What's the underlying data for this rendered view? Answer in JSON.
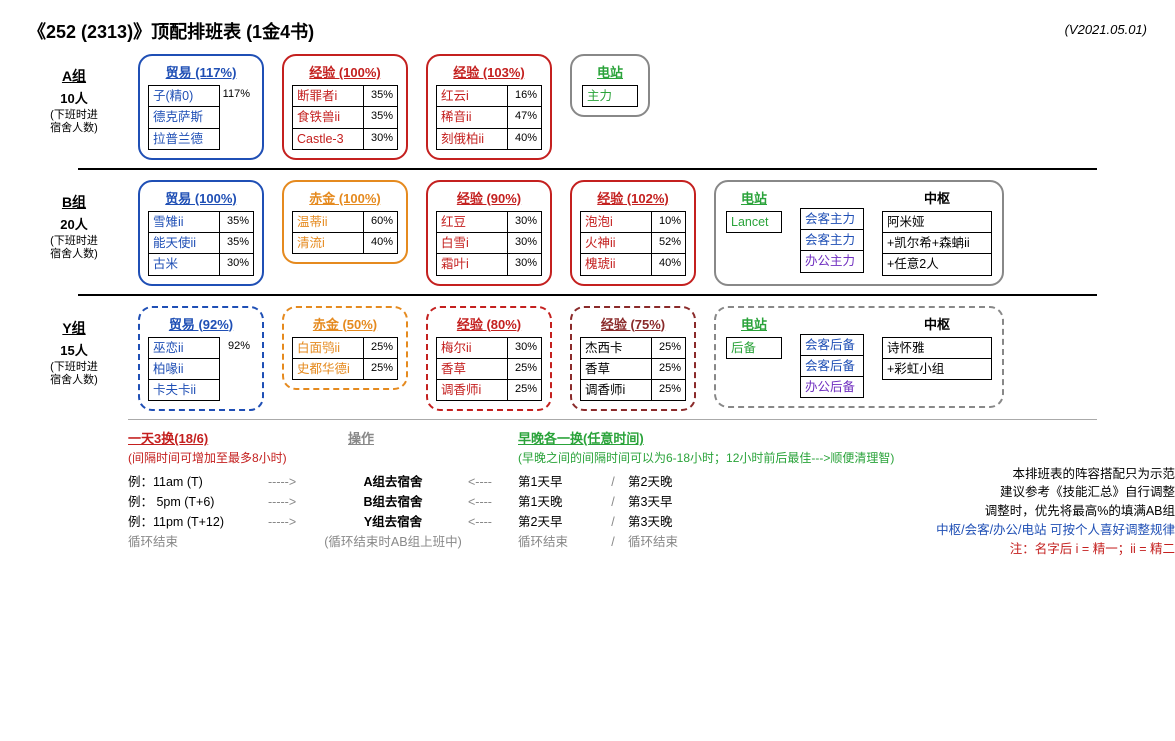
{
  "title": "《252 (2313)》顶配排班表 (1金4书)",
  "version": "(V2021.05.01)",
  "colors": {
    "blue": "#1f4fb5",
    "orange": "#e58a1f",
    "red": "#c4201f",
    "darkred": "#8a2a2a",
    "green": "#2aa33a",
    "gray": "#888888",
    "purple": "#7030c0"
  },
  "groups": [
    {
      "name": "A组",
      "count": "10人",
      "sub": "(下班时进\n宿舍人数)",
      "dashed": false,
      "cards": [
        {
          "kind": "blue",
          "title": "贸易 (117%)",
          "rows": [
            [
              "子(精0)",
              "117%"
            ],
            [
              "德克萨斯",
              ""
            ],
            [
              "拉普兰德",
              ""
            ]
          ],
          "pctSpan": true
        },
        {
          "kind": "red",
          "title": "经验 (100%)",
          "rows": [
            [
              "断罪者i",
              "35%"
            ],
            [
              "食铁兽ii",
              "35%"
            ],
            [
              "Castle-3",
              "30%"
            ]
          ]
        },
        {
          "kind": "red",
          "title": "经验 (103%)",
          "rows": [
            [
              "红云i",
              "16%"
            ],
            [
              "稀音ii",
              "47%"
            ],
            [
              "刻俄柏ii",
              "40%"
            ]
          ]
        },
        {
          "kind": "combo-small",
          "left": {
            "title": "电站",
            "titleColor": "green",
            "rows": [
              [
                "主力",
                ""
              ]
            ],
            "nameColor": "green"
          }
        }
      ]
    },
    {
      "name": "B组",
      "count": "20人",
      "sub": "(下班时进\n宿舍人数)",
      "dashed": false,
      "cards": [
        {
          "kind": "blue",
          "title": "贸易 (100%)",
          "rows": [
            [
              "雪雉ii",
              "35%"
            ],
            [
              "能天使ii",
              "35%"
            ],
            [
              "古米",
              "30%"
            ]
          ]
        },
        {
          "kind": "orange",
          "title": "赤金 (100%)",
          "rows": [
            [
              "温蒂ii",
              "60%"
            ],
            [
              "清流i",
              "40%"
            ]
          ]
        },
        {
          "kind": "red",
          "title": "经验 (90%)",
          "rows": [
            [
              "红豆",
              "30%"
            ],
            [
              "白雪i",
              "30%"
            ],
            [
              "霜叶i",
              "30%"
            ]
          ]
        },
        {
          "kind": "red",
          "title": "经验 (102%)",
          "rows": [
            [
              "泡泡i",
              "10%"
            ],
            [
              "火神ii",
              "52%"
            ],
            [
              "槐琥ii",
              "40%"
            ]
          ]
        },
        {
          "kind": "combo",
          "left": {
            "title": "电站",
            "titleColor": "green",
            "rows": [
              [
                "Lancet",
                ""
              ]
            ],
            "nameColor": "green"
          },
          "mid": {
            "rows": [
              [
                "会客主力",
                ""
              ],
              [
                "会客主力",
                ""
              ],
              [
                "办公主力",
                ""
              ]
            ],
            "colors": [
              "#1f4fb5",
              "#1f4fb5",
              "#7030c0"
            ]
          },
          "right": {
            "title": "中枢",
            "rows": [
              [
                "阿米娅",
                ""
              ],
              [
                "+凯尔希+森蚺ii",
                ""
              ],
              [
                "+任意2人",
                ""
              ]
            ]
          }
        }
      ]
    },
    {
      "name": "Y组",
      "count": "15人",
      "sub": "(下班时进\n宿舍人数)",
      "dashed": true,
      "cards": [
        {
          "kind": "blue",
          "title": "贸易 (92%)",
          "rows": [
            [
              "巫恋ii",
              "92%"
            ],
            [
              "柏喙ii",
              ""
            ],
            [
              "卡夫卡ii",
              ""
            ]
          ],
          "pctSpan": true
        },
        {
          "kind": "orange",
          "title": "赤金 (50%)",
          "rows": [
            [
              "白面鸮ii",
              "25%"
            ],
            [
              "史都华德i",
              "25%"
            ]
          ]
        },
        {
          "kind": "red",
          "title": "经验 (80%)",
          "rows": [
            [
              "梅尔ii",
              "30%"
            ],
            [
              "香草",
              "25%"
            ],
            [
              "调香师i",
              "25%"
            ]
          ]
        },
        {
          "kind": "darkred",
          "title": "经验 (75%)",
          "rows": [
            [
              "杰西卡",
              "25%"
            ],
            [
              "香草",
              "25%"
            ],
            [
              "调香师i",
              "25%"
            ]
          ]
        },
        {
          "kind": "combo",
          "left": {
            "title": "电站",
            "titleColor": "green",
            "rows": [
              [
                "后备",
                ""
              ]
            ],
            "nameColor": "green"
          },
          "mid": {
            "rows": [
              [
                "会客后备",
                ""
              ],
              [
                "会客后备",
                ""
              ],
              [
                "办公后备",
                ""
              ]
            ],
            "colors": [
              "#1f4fb5",
              "#1f4fb5",
              "#7030c0"
            ]
          },
          "right": {
            "title": "中枢",
            "rows": [
              [
                "诗怀雅",
                ""
              ],
              [
                "+彩虹小组",
                ""
              ]
            ]
          }
        }
      ]
    }
  ],
  "sched": {
    "h1": {
      "text": "一天3换(18/6)",
      "color": "#c4201f"
    },
    "h1sub": {
      "text": "(间隔时间可增加至最多8小时)",
      "color": "#c4201f"
    },
    "h2": "操作",
    "h3": {
      "text": "早晚各一换(任意时间)",
      "color": "#2aa33a"
    },
    "h3sub": {
      "text": "(早晚之间的间隔时间可以为6-18小时；12小时前后最佳--->顺便清理智)",
      "color": "#2aa33a"
    },
    "rows": [
      {
        "l": "例：11am  (T)",
        "arrow": "----->",
        "op": "A组去宿舍",
        "arrow2": "<----",
        "r1": "第1天早",
        "sep": "/",
        "r2": "第2天晚"
      },
      {
        "l": "例： 5pm  (T+6)",
        "arrow": "----->",
        "op": "B组去宿舍",
        "arrow2": "<----",
        "r1": "第1天晚",
        "sep": "/",
        "r2": "第3天早"
      },
      {
        "l": "例：11pm  (T+12)",
        "arrow": "----->",
        "op": "Y组去宿舍",
        "arrow2": "<----",
        "r1": "第2天早",
        "sep": "/",
        "r2": "第3天晚"
      },
      {
        "l": "循环结束",
        "arrow": "",
        "op": "(循环结束时AB组上班中)",
        "arrow2": "",
        "r1": "循环结束",
        "sep": "/",
        "r2": "循环结束",
        "gray": true
      }
    ],
    "footnotes": [
      {
        "text": "本排班表的阵容搭配只为示范",
        "color": "#000"
      },
      {
        "text": "建议参考《技能汇总》自行调整",
        "color": "#000"
      },
      {
        "text": "调整时，优先将最高%的填满AB组",
        "color": "#000"
      },
      {
        "text": "中枢/会客/办公/电站 可按个人喜好调整规律",
        "color": "#1f4fb5"
      },
      {
        "text": "注：名字后 i = 精一；ii = 精二",
        "color": "#c4201f"
      }
    ]
  }
}
